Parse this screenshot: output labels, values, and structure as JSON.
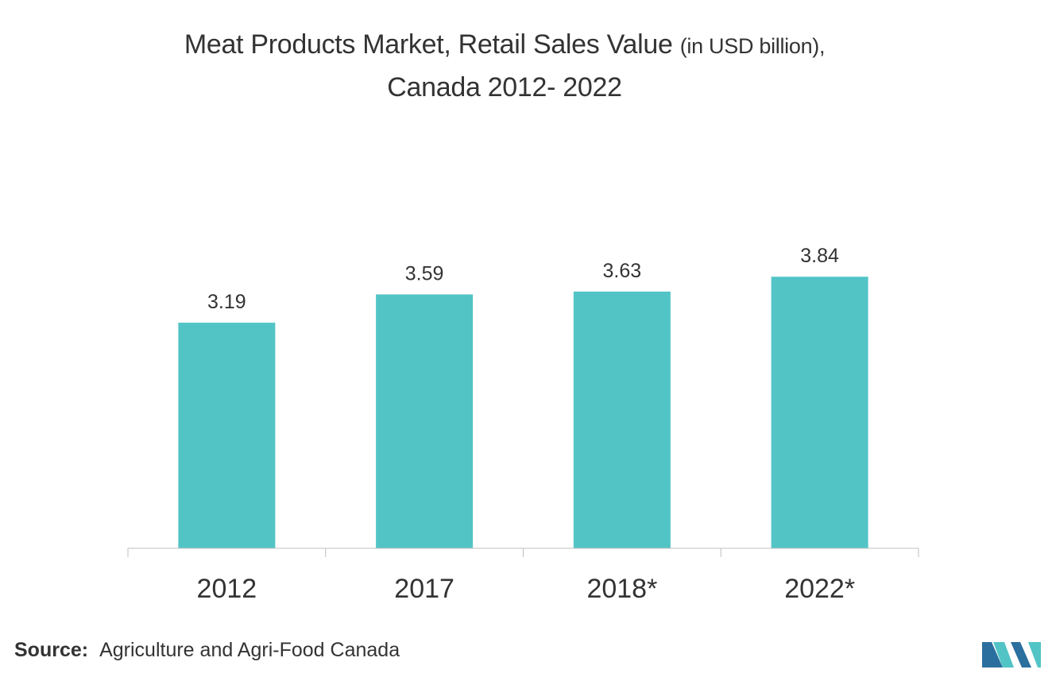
{
  "title": {
    "main": "Meat Products Market, Retail Sales Value",
    "unit": "(in USD billion),",
    "line2": "Canada 2012- 2022"
  },
  "chart_data": {
    "type": "bar",
    "categories": [
      "2012",
      "2017",
      "2018*",
      "2022*"
    ],
    "values": [
      3.19,
      3.59,
      3.63,
      3.84
    ],
    "data_labels": [
      "3.19",
      "3.59",
      "3.63",
      "3.84"
    ],
    "xlabel": "",
    "ylabel": "",
    "ylim": [
      0,
      4.3
    ],
    "grid": false,
    "legend": "none",
    "bar_color": "#52c4c6"
  },
  "source": {
    "label": "Source:",
    "text": "Agriculture and Agri-Food Canada"
  },
  "logo": {
    "icon": "mordor-intelligence-logo-icon",
    "colors": [
      "#2a6f9e",
      "#52c4c6"
    ]
  }
}
